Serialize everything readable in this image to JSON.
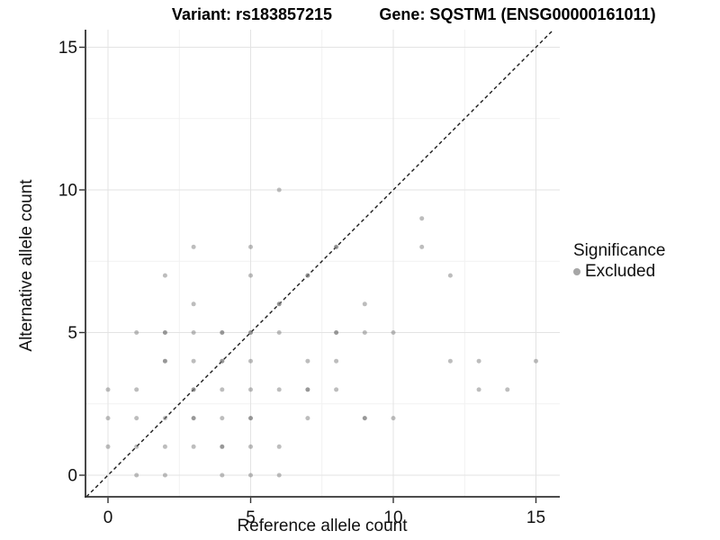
{
  "header": {
    "variant_title": "Variant: rs183857215",
    "gene_title": "Gene: SQSTM1 (ENSG00000161011)"
  },
  "chart_data": {
    "type": "scatter",
    "title_left": "Variant: rs183857215",
    "title_right": "Gene: SQSTM1 (ENSG00000161011)",
    "xlabel": "Reference allele count",
    "ylabel": "Alternative allele count",
    "xlim": [
      -0.8,
      15.9
    ],
    "ylim": [
      -0.76,
      15.65
    ],
    "xticks": [
      0,
      5,
      10,
      15
    ],
    "yticks": [
      0,
      5,
      10,
      15
    ],
    "minor_gridlines_x": [
      2.5,
      7.5,
      12.5
    ],
    "minor_gridlines_y": [
      2.5,
      7.5,
      12.5
    ],
    "grid": "on",
    "identity_line": {
      "style": "dashed",
      "equation": "y = x",
      "color": "#1a1a1a"
    },
    "legend": {
      "position": "right",
      "title": "Significance",
      "items": [
        {
          "label": "Excluded",
          "color": "#a6a6a6"
        }
      ]
    },
    "point_colors": {
      "light": "#bdbdbd",
      "dark": "#9c9c9c",
      "base": "#757575"
    },
    "series": [
      {
        "name": "Excluded",
        "points_xyw": [
          [
            1,
            0,
            1
          ],
          [
            2,
            0,
            1
          ],
          [
            4,
            0,
            1
          ],
          [
            5,
            0,
            1
          ],
          [
            6,
            0,
            1
          ],
          [
            0,
            1,
            1
          ],
          [
            1,
            1,
            1
          ],
          [
            2,
            1,
            1
          ],
          [
            3,
            1,
            1
          ],
          [
            4,
            1,
            2
          ],
          [
            5,
            1,
            1
          ],
          [
            6,
            1,
            1
          ],
          [
            0,
            2,
            1
          ],
          [
            1,
            2,
            1
          ],
          [
            2,
            2,
            1
          ],
          [
            3,
            2,
            2
          ],
          [
            4,
            2,
            1
          ],
          [
            5,
            2,
            2
          ],
          [
            7,
            2,
            1
          ],
          [
            9,
            2,
            2
          ],
          [
            10,
            2,
            1
          ],
          [
            0,
            3,
            1
          ],
          [
            1,
            3,
            1
          ],
          [
            3,
            3,
            2
          ],
          [
            4,
            3,
            1
          ],
          [
            5,
            3,
            1
          ],
          [
            6,
            3,
            1
          ],
          [
            7,
            3,
            2
          ],
          [
            8,
            3,
            1
          ],
          [
            13,
            3,
            1
          ],
          [
            14,
            3,
            1
          ],
          [
            2,
            4,
            2
          ],
          [
            3,
            4,
            1
          ],
          [
            4,
            4,
            2
          ],
          [
            5,
            4,
            1
          ],
          [
            7,
            4,
            1
          ],
          [
            8,
            4,
            1
          ],
          [
            12,
            4,
            1
          ],
          [
            13,
            4,
            1
          ],
          [
            15,
            4,
            1
          ],
          [
            1,
            5,
            1
          ],
          [
            2,
            5,
            2
          ],
          [
            3,
            5,
            1
          ],
          [
            4,
            5,
            2
          ],
          [
            5,
            5,
            2
          ],
          [
            6,
            5,
            1
          ],
          [
            8,
            5,
            2
          ],
          [
            9,
            5,
            1
          ],
          [
            10,
            5,
            1
          ],
          [
            3,
            6,
            1
          ],
          [
            6,
            6,
            2
          ],
          [
            9,
            6,
            1
          ],
          [
            2,
            7,
            1
          ],
          [
            5,
            7,
            1
          ],
          [
            7,
            7,
            2
          ],
          [
            12,
            7,
            1
          ],
          [
            3,
            8,
            1
          ],
          [
            5,
            8,
            1
          ],
          [
            8,
            8,
            2
          ],
          [
            11,
            8,
            1
          ],
          [
            11,
            9,
            1
          ],
          [
            6,
            10,
            1
          ]
        ]
      }
    ]
  }
}
